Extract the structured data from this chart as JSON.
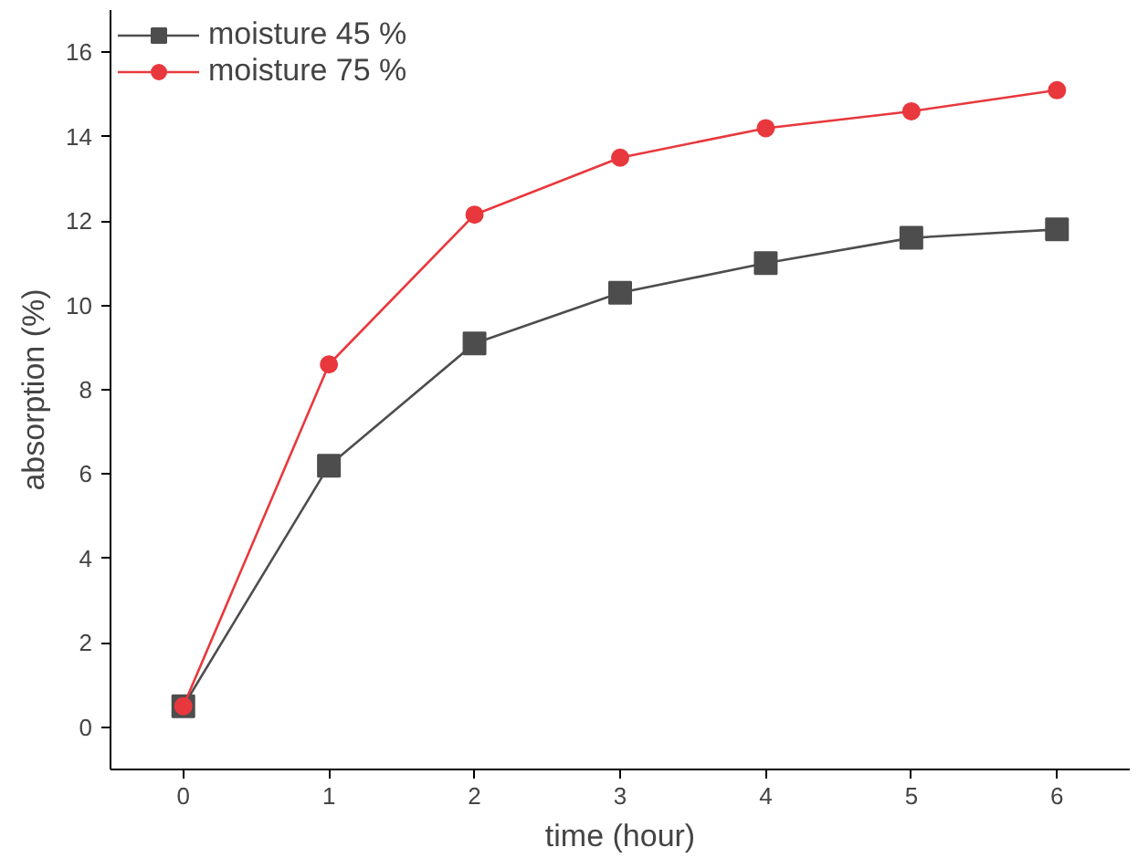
{
  "chart_data": {
    "type": "line",
    "xlabel": "time (hour)",
    "ylabel": "absorption (%)",
    "x": [
      0,
      1,
      2,
      3,
      4,
      5,
      6
    ],
    "series": [
      {
        "name": "moisture 45 %",
        "color": "#4d4d4d",
        "marker": "square",
        "values": [
          0.5,
          6.2,
          9.1,
          10.3,
          11.0,
          11.6,
          11.8
        ]
      },
      {
        "name": "moisture 75 %",
        "color": "#e8383d",
        "marker": "circle",
        "values": [
          0.5,
          8.6,
          12.15,
          13.5,
          14.2,
          14.6,
          15.1
        ]
      }
    ],
    "xlim": [
      -0.5,
      6.5
    ],
    "xticks": [
      0,
      1,
      2,
      3,
      4,
      5,
      6
    ],
    "ylim": [
      -1,
      17
    ],
    "yticks": [
      0,
      2,
      4,
      6,
      8,
      10,
      12,
      14,
      16
    ],
    "grid": false,
    "legend": "top left",
    "line_style": "solid"
  }
}
